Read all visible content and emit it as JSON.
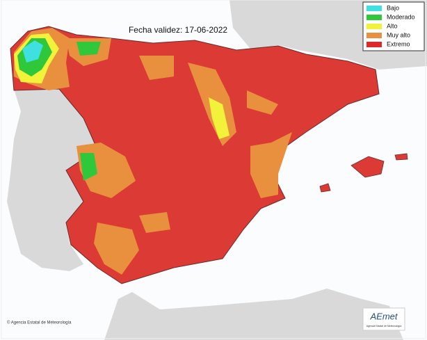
{
  "title": "Fecha validez: 17-06-2022",
  "legend": {
    "items": [
      {
        "label": "Bajo",
        "color": "#3fe0e0"
      },
      {
        "label": "Moderado",
        "color": "#2ec83a"
      },
      {
        "label": "Alto",
        "color": "#f2f23a"
      },
      {
        "label": "Muy alto",
        "color": "#e8903e"
      },
      {
        "label": "Extremo",
        "color": "#dc2a2a"
      }
    ]
  },
  "credit": "© Agencia Estatal de Meteorología",
  "logo": {
    "name": "AEmet",
    "subtitle": "Agencia Estatal de Meteorología"
  }
}
